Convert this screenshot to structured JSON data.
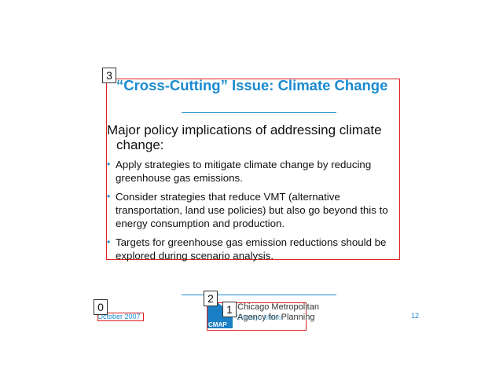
{
  "slide": {
    "title": "“Cross-Cutting” Issue: Climate Change",
    "lead_line1": "Major policy implications of addressing climate",
    "lead_line2": "change:",
    "bullets": [
      "Apply strategies to mitigate climate change by reducing greenhouse gas emissions.",
      "Consider strategies that reduce VMT (alternative transportation, land use policies) but also go beyond this to energy consumption and production.",
      "Targets for greenhouse gas emission reductions should be explored during scenario analysis."
    ],
    "bullet_glyph": "•"
  },
  "footer": {
    "date": "October 2007",
    "page_number": "12",
    "logo_line1": "Chicago Metropolitan",
    "logo_line2": "Agency for Planning",
    "logo_badge": "CMAP",
    "logo_sub": "Chicago Metro"
  },
  "annotations": {
    "tags": [
      "0",
      "1",
      "2",
      "3"
    ]
  },
  "colors": {
    "accent": "#1a8ad0",
    "annotation": "#e02020"
  }
}
